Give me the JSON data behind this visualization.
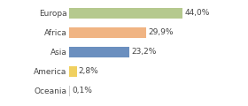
{
  "categories": [
    "Europa",
    "Africa",
    "Asia",
    "America",
    "Oceania"
  ],
  "values": [
    44.0,
    29.9,
    23.2,
    2.8,
    0.1
  ],
  "labels": [
    "44,0%",
    "29,9%",
    "23,2%",
    "2,8%",
    "0,1%"
  ],
  "bar_colors": [
    "#b5c98e",
    "#f0b483",
    "#6b8fbf",
    "#f0d060",
    "#cccccc"
  ],
  "background_color": "#ffffff",
  "xlim": [
    0,
    58
  ],
  "label_fontsize": 6.5,
  "value_fontsize": 6.5,
  "bar_height": 0.55
}
